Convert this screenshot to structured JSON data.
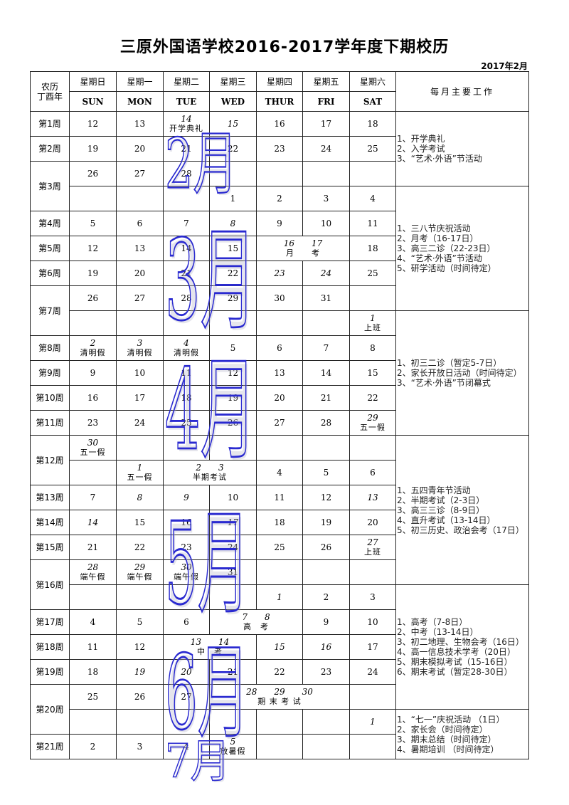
{
  "title": "三原外国语学校2016-2017学年度下期校历",
  "date": "2017年2月",
  "colors": {
    "watermark": "#2a2ad0",
    "border": "#222222"
  },
  "header": {
    "lunar": [
      "农历",
      "丁酉年"
    ],
    "days_cn": [
      "星期日",
      "星期一",
      "星期二",
      "星期三",
      "星期四",
      "星期五",
      "星期六"
    ],
    "days_en": [
      "SUN",
      "MON",
      "TUE",
      "WED",
      "THUR",
      "FRI",
      "SAT"
    ],
    "work": "每月主要工作"
  },
  "watermarks": [
    "2月",
    "3月",
    "4月",
    "5月",
    "6月",
    "7月"
  ],
  "rows": [
    {
      "week": "第1周",
      "span": 1,
      "cells": [
        {
          "d": "12"
        },
        {
          "d": "13"
        },
        {
          "d": "14",
          "i": true,
          "n": "开学典礼"
        },
        {
          "d": "15",
          "i": true
        },
        {
          "d": "16"
        },
        {
          "d": "17"
        },
        {
          "d": "18"
        }
      ]
    },
    {
      "week": "第2周",
      "span": 1,
      "cells": [
        {
          "d": "19"
        },
        {
          "d": "20"
        },
        {
          "d": "21"
        },
        {
          "d": "22"
        },
        {
          "d": "23"
        },
        {
          "d": "24"
        },
        {
          "d": "25"
        }
      ]
    },
    {
      "week": "第3周",
      "span": 2,
      "cells": [
        {
          "d": "26"
        },
        {
          "d": "27"
        },
        {
          "d": "28"
        },
        {},
        {},
        {},
        {}
      ]
    },
    {
      "cells": [
        {},
        {},
        {},
        {
          "d": "1"
        },
        {
          "d": "2"
        },
        {
          "d": "3"
        },
        {
          "d": "4"
        }
      ]
    },
    {
      "week": "第4周",
      "span": 1,
      "cells": [
        {
          "d": "5"
        },
        {
          "d": "6"
        },
        {
          "d": "7"
        },
        {
          "d": "8",
          "i": true
        },
        {
          "d": "9"
        },
        {
          "d": "10"
        },
        {
          "d": "11"
        }
      ]
    },
    {
      "week": "第5周",
      "span": 1,
      "cells": [
        {
          "d": "12"
        },
        {
          "d": "13"
        },
        {
          "d": "14"
        },
        {
          "d": "15"
        },
        {
          "d": "16　　17",
          "i": true,
          "n": "月　　考",
          "cs": 2
        },
        {
          "d": "18"
        }
      ]
    },
    {
      "week": "第6周",
      "span": 1,
      "cells": [
        {
          "d": "19"
        },
        {
          "d": "20"
        },
        {
          "d": "21"
        },
        {
          "d": "22"
        },
        {
          "d": "23",
          "i": true
        },
        {
          "d": "24",
          "i": true
        },
        {
          "d": "25"
        }
      ]
    },
    {
      "week": "第7周",
      "span": 2,
      "cells": [
        {
          "d": "26"
        },
        {
          "d": "27"
        },
        {
          "d": "28"
        },
        {
          "d": "29"
        },
        {
          "d": "30"
        },
        {
          "d": "31"
        },
        {}
      ]
    },
    {
      "cells": [
        {},
        {},
        {},
        {},
        {},
        {},
        {
          "d": "1",
          "i": true,
          "n": "上班"
        }
      ]
    },
    {
      "week": "第8周",
      "span": 1,
      "cells": [
        {
          "d": "2",
          "i": true,
          "n": "清明假"
        },
        {
          "d": "3",
          "i": true,
          "n": "清明假"
        },
        {
          "d": "4",
          "i": true,
          "n": "清明假"
        },
        {
          "d": "5"
        },
        {
          "d": "6"
        },
        {
          "d": "7"
        },
        {
          "d": "8"
        }
      ]
    },
    {
      "week": "第9周",
      "span": 1,
      "cells": [
        {
          "d": "9"
        },
        {
          "d": "10"
        },
        {
          "d": "11"
        },
        {
          "d": "12"
        },
        {
          "d": "13"
        },
        {
          "d": "14"
        },
        {
          "d": "15"
        }
      ]
    },
    {
      "week": "第10周",
      "span": 1,
      "cells": [
        {
          "d": "16"
        },
        {
          "d": "17"
        },
        {
          "d": "18"
        },
        {
          "d": "19"
        },
        {
          "d": "20"
        },
        {
          "d": "21"
        },
        {
          "d": "22"
        }
      ]
    },
    {
      "week": "第11周",
      "span": 1,
      "cells": [
        {
          "d": "23"
        },
        {
          "d": "24"
        },
        {
          "d": "25"
        },
        {
          "d": "26"
        },
        {
          "d": "27"
        },
        {
          "d": "28"
        },
        {
          "d": "29",
          "i": true,
          "n": "五一假"
        }
      ]
    },
    {
      "week": "第12周",
      "span": 2,
      "cells": [
        {
          "d": "30",
          "i": true,
          "n": "五一假"
        },
        {},
        {},
        {},
        {},
        {},
        {}
      ]
    },
    {
      "cells": [
        {},
        {
          "d": "1",
          "i": true,
          "n": "五一假"
        },
        {
          "d": "2　　3",
          "i": true,
          "n": "半期考试",
          "cs": 2
        },
        {
          "d": "4"
        },
        {
          "d": "5"
        },
        {
          "d": "6"
        }
      ]
    },
    {
      "week": "第13周",
      "span": 1,
      "cells": [
        {
          "d": "7"
        },
        {
          "d": "8",
          "i": true
        },
        {
          "d": "9",
          "i": true
        },
        {
          "d": "10"
        },
        {
          "d": "11"
        },
        {
          "d": "12"
        },
        {
          "d": "13",
          "i": true
        }
      ]
    },
    {
      "week": "第14周",
      "span": 1,
      "cells": [
        {
          "d": "14",
          "i": true
        },
        {
          "d": "15"
        },
        {
          "d": "16"
        },
        {
          "d": "17",
          "i": true
        },
        {
          "d": "18"
        },
        {
          "d": "19"
        },
        {
          "d": "20"
        }
      ]
    },
    {
      "week": "第15周",
      "span": 1,
      "cells": [
        {
          "d": "21"
        },
        {
          "d": "22"
        },
        {
          "d": "23"
        },
        {
          "d": "24"
        },
        {
          "d": "25"
        },
        {
          "d": "26"
        },
        {
          "d": "27",
          "i": true,
          "n": "上班"
        }
      ]
    },
    {
      "week": "第16周",
      "span": 2,
      "cells": [
        {
          "d": "28",
          "i": true,
          "n": "端午假"
        },
        {
          "d": "29",
          "i": true,
          "n": "端午假"
        },
        {
          "d": "30",
          "i": true,
          "n": "端午假"
        },
        {
          "d": "31"
        },
        {},
        {},
        {}
      ]
    },
    {
      "cells": [
        {},
        {},
        {},
        {},
        {
          "d": "1",
          "i": true
        },
        {
          "d": "2"
        },
        {
          "d": "3"
        }
      ]
    },
    {
      "week": "第17周",
      "span": 1,
      "cells": [
        {
          "d": "4"
        },
        {
          "d": "5"
        },
        {
          "d": "6"
        },
        {
          "d": "7　　8",
          "i": true,
          "n": "高　考",
          "cs": 2
        },
        {
          "d": "9"
        },
        {
          "d": "10"
        }
      ]
    },
    {
      "week": "第18周",
      "span": 1,
      "cells": [
        {
          "d": "11"
        },
        {
          "d": "12"
        },
        {
          "d": "13　　14",
          "i": true,
          "n": "中　考",
          "cs": 2
        },
        {
          "d": "15",
          "i": true
        },
        {
          "d": "16",
          "i": true
        },
        {
          "d": "17"
        }
      ]
    },
    {
      "week": "第19周",
      "span": 1,
      "cells": [
        {
          "d": "18"
        },
        {
          "d": "19",
          "i": true
        },
        {
          "d": "20",
          "i": true
        },
        {
          "d": "21"
        },
        {
          "d": "22"
        },
        {
          "d": "23"
        },
        {
          "d": "24"
        }
      ]
    },
    {
      "week": "第20周",
      "span": 2,
      "cells": [
        {
          "d": "25"
        },
        {
          "d": "26"
        },
        {
          "d": "27"
        },
        {
          "d": "28　　29　　30",
          "i": true,
          "n": "期 末 考 试",
          "cs": 3
        },
        {}
      ]
    },
    {
      "cells": [
        {},
        {},
        {},
        {},
        {},
        {},
        {
          "d": "1",
          "i": true
        }
      ]
    },
    {
      "week": "第21周",
      "span": 1,
      "cells": [
        {
          "d": "2"
        },
        {
          "d": "3"
        },
        {
          "d": "4"
        },
        {
          "d": "5",
          "i": true,
          "n": "放暑假"
        },
        {},
        {},
        {}
      ]
    }
  ],
  "work": [
    {
      "start": 0,
      "span": 3,
      "items": [
        "1、开学典礼",
        "2、入学考试",
        "3、“艺术·外语”节活动"
      ]
    },
    {
      "start": 3,
      "span": 5,
      "items": [
        "1、三八节庆祝活动",
        "2、月考（16-17日）",
        "3、高三二诊（22-23日）",
        "4、“艺术·外语”节活动",
        "5、研学活动（时间待定）"
      ]
    },
    {
      "start": 8,
      "span": 5,
      "items": [
        "1、初三二诊（暂定5-7日）",
        "2、家长开放日活动（时间待定）",
        "3、“艺术·外语”节闭幕式"
      ]
    },
    {
      "start": 13,
      "span": 6,
      "items": [
        "1、五四青年节活动",
        "2、半期考试（2-3日）",
        "3、高三三诊（8-9日）",
        "4、直升考试（13-14日）",
        "5、初三历史、政治会考（17日）"
      ]
    },
    {
      "start": 19,
      "span": 5,
      "items": [
        "1、高考（7-8日）",
        "2、中考（13-14日）",
        "3、初二地理、生物会考（16日）",
        "4、高一信息技术学考（20日）",
        "5、期末模拟考试（15-16日）",
        "6、期末考试（暂定28-30日）"
      ]
    },
    {
      "start": 24,
      "span": 2,
      "items": [
        "1、“七一”庆祝活动 （1日）",
        "2、家长会（时间待定）",
        "3、期末总结（时间待定）",
        "4、暑期培训 （时间待定）"
      ]
    }
  ]
}
